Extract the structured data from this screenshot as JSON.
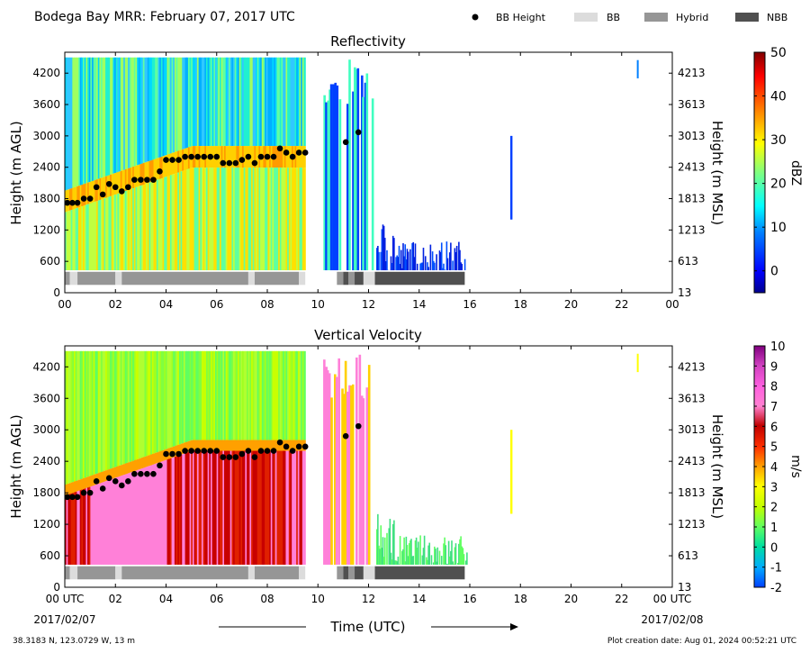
{
  "header": {
    "title": "Bodega Bay MRR:  February 07, 2017 UTC",
    "legend": [
      {
        "label": "BB Height",
        "kind": "dot",
        "color": "#000000"
      },
      {
        "label": "BB",
        "kind": "box",
        "color": "#dcdcdc"
      },
      {
        "label": "Hybrid",
        "kind": "box",
        "color": "#969696"
      },
      {
        "label": "NBB",
        "kind": "box",
        "color": "#505050"
      }
    ]
  },
  "footer": {
    "coords": "38.3183 N, 123.0729 W, 13 m",
    "created": "Plot creation date: Aug 01, 2024 00:52:21 UTC",
    "xlabel": "Time (UTC)",
    "date_left": "2017/02/07",
    "date_right": "2017/02/08"
  },
  "chart_data": [
    {
      "type": "heatmap",
      "title": "Reflectivity",
      "xlabel": "Time (UTC)",
      "ylabel": "Height (m AGL)",
      "ylabel_right": "Height (m MSL)",
      "xlim": [
        0,
        24
      ],
      "ylim": [
        0,
        4600
      ],
      "x_ticks": [
        "00",
        "02",
        "04",
        "06",
        "08",
        "10",
        "12",
        "14",
        "16",
        "18",
        "20",
        "22",
        "00"
      ],
      "y_ticks": [
        0,
        600,
        1200,
        1800,
        2400,
        3000,
        3600,
        4200
      ],
      "y_ticks_right": [
        13,
        613,
        1213,
        1813,
        2413,
        3013,
        3613,
        4213
      ],
      "colorbar": {
        "label": "dBZ",
        "range": [
          -5,
          50
        ],
        "ticks": [
          0,
          10,
          20,
          30,
          40,
          50
        ]
      },
      "bb_height": {
        "x": [
          0.1,
          0.3,
          0.5,
          0.75,
          1.0,
          1.25,
          1.5,
          1.75,
          2.0,
          2.25,
          2.5,
          2.75,
          3.0,
          3.25,
          3.5,
          3.75,
          4.0,
          4.25,
          4.5,
          4.75,
          5.0,
          5.25,
          5.5,
          5.75,
          6.0,
          6.25,
          6.5,
          6.75,
          7.0,
          7.25,
          7.5,
          7.75,
          8.0,
          8.25,
          8.5,
          8.75,
          9.0,
          9.25,
          9.5,
          11.1,
          11.6
        ],
        "y": [
          1720,
          1720,
          1720,
          1800,
          1800,
          2020,
          1880,
          2080,
          2020,
          1940,
          2020,
          2160,
          2160,
          2160,
          2160,
          2320,
          2540,
          2540,
          2540,
          2600,
          2600,
          2600,
          2600,
          2600,
          2600,
          2480,
          2480,
          2480,
          2540,
          2600,
          2480,
          2600,
          2600,
          2600,
          2760,
          2680,
          2600,
          2680,
          2680,
          2880,
          3070
        ]
      },
      "bb_type": [
        {
          "start": 0.0,
          "end": 0.2,
          "type": "Hybrid"
        },
        {
          "start": 0.2,
          "end": 0.5,
          "type": "BB"
        },
        {
          "start": 0.5,
          "end": 2.0,
          "type": "Hybrid"
        },
        {
          "start": 2.0,
          "end": 2.25,
          "type": "BB"
        },
        {
          "start": 2.25,
          "end": 7.25,
          "type": "Hybrid"
        },
        {
          "start": 7.25,
          "end": 7.5,
          "type": "BB"
        },
        {
          "start": 7.5,
          "end": 9.25,
          "type": "Hybrid"
        },
        {
          "start": 9.25,
          "end": 9.5,
          "type": "BB"
        },
        {
          "start": 10.75,
          "end": 11.0,
          "type": "Hybrid"
        },
        {
          "start": 11.0,
          "end": 11.2,
          "type": "NBB"
        },
        {
          "start": 11.2,
          "end": 11.45,
          "type": "Hybrid"
        },
        {
          "start": 11.45,
          "end": 11.8,
          "type": "NBB"
        },
        {
          "start": 11.8,
          "end": 12.25,
          "type": "BB"
        },
        {
          "start": 12.25,
          "end": 15.8,
          "type": "NBB"
        }
      ]
    },
    {
      "type": "heatmap",
      "title": "Vertical Velocity",
      "xlabel": "Time (UTC)",
      "ylabel": "Height (m AGL)",
      "ylabel_right": "Height (m MSL)",
      "xlim": [
        0,
        24
      ],
      "ylim": [
        0,
        4600
      ],
      "x_ticks": [
        "00 UTC",
        "02",
        "04",
        "06",
        "08",
        "10",
        "12",
        "14",
        "16",
        "18",
        "20",
        "22",
        "00 UTC"
      ],
      "y_ticks": [
        0,
        600,
        1200,
        1800,
        2400,
        3000,
        3600,
        4200
      ],
      "y_ticks_right": [
        13,
        613,
        1213,
        1813,
        2413,
        3013,
        3613,
        4213
      ],
      "colorbar": {
        "label": "m/s",
        "range": [
          -2,
          10
        ],
        "ticks": [
          -2,
          -1,
          0,
          1,
          2,
          3,
          4,
          5,
          6,
          7,
          8,
          9,
          10
        ]
      },
      "bb_height": "same as Reflectivity",
      "bb_type": "same as Reflectivity"
    }
  ]
}
